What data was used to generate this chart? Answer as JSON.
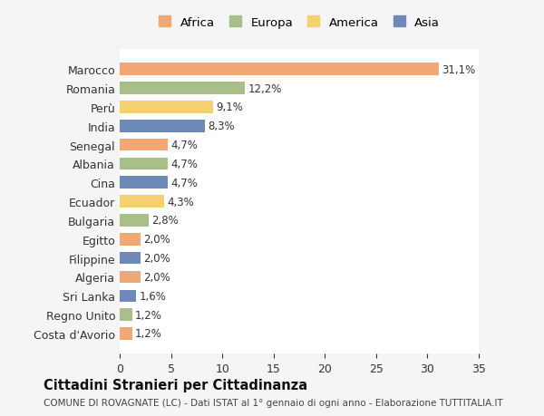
{
  "countries": [
    "Marocco",
    "Romania",
    "Perù",
    "India",
    "Senegal",
    "Albania",
    "Cina",
    "Ecuador",
    "Bulgaria",
    "Egitto",
    "Filippine",
    "Algeria",
    "Sri Lanka",
    "Regno Unito",
    "Costa d'Avorio"
  ],
  "values": [
    31.1,
    12.2,
    9.1,
    8.3,
    4.7,
    4.7,
    4.7,
    4.3,
    2.8,
    2.0,
    2.0,
    2.0,
    1.6,
    1.2,
    1.2
  ],
  "labels": [
    "31,1%",
    "12,2%",
    "9,1%",
    "8,3%",
    "4,7%",
    "4,7%",
    "4,7%",
    "4,3%",
    "2,8%",
    "2,0%",
    "2,0%",
    "2,0%",
    "1,6%",
    "1,2%",
    "1,2%"
  ],
  "colors": [
    "#F0A875",
    "#A8BF8A",
    "#F5D070",
    "#6E88B8",
    "#F0A875",
    "#A8BF8A",
    "#6E88B8",
    "#F5D070",
    "#A8BF8A",
    "#F0A875",
    "#6E88B8",
    "#F0A875",
    "#6E88B8",
    "#A8BF8A",
    "#F0A875"
  ],
  "continents": [
    "Africa",
    "Europa",
    "America",
    "Asia"
  ],
  "legend_colors": [
    "#F0A875",
    "#A8BF8A",
    "#F5D070",
    "#6E88B8"
  ],
  "title": "Cittadini Stranieri per Cittadinanza",
  "subtitle": "COMUNE DI ROVAGNATE (LC) - Dati ISTAT al 1° gennaio di ogni anno - Elaborazione TUTTITALIA.IT",
  "xlim": [
    0,
    35
  ],
  "xticks": [
    0,
    5,
    10,
    15,
    20,
    25,
    30,
    35
  ],
  "background_color": "#f5f5f5",
  "bar_background": "#ffffff",
  "grid_color": "#ffffff"
}
